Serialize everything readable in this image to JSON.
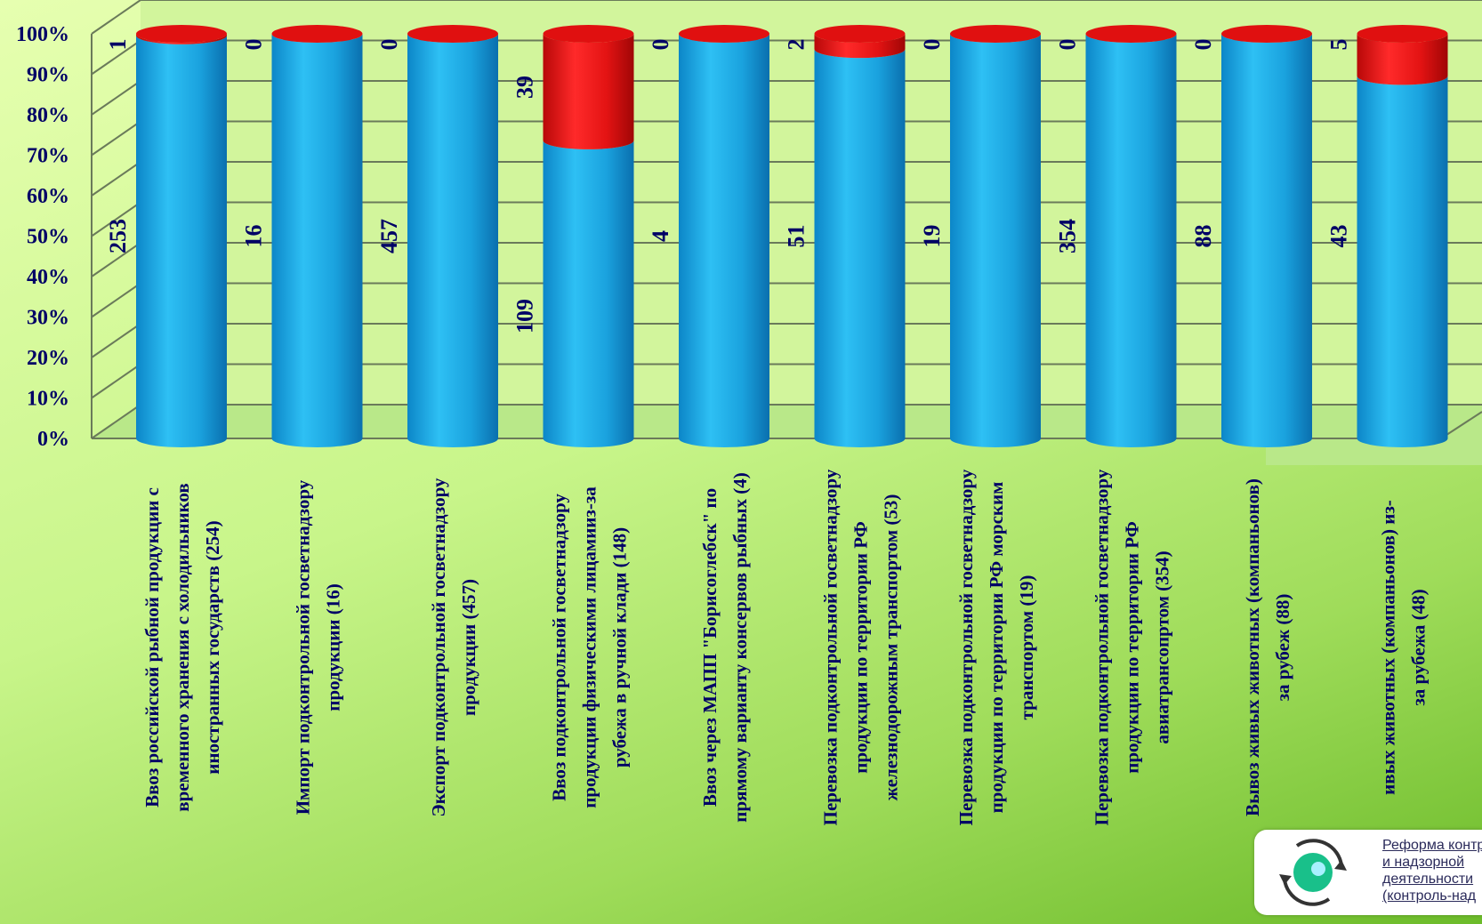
{
  "chart_data": {
    "type": "bar",
    "stacked": "percent",
    "ylim": [
      0,
      100
    ],
    "y_ticks": [
      "0%",
      "10%",
      "20%",
      "30%",
      "40%",
      "50%",
      "60%",
      "70%",
      "80%",
      "90%",
      "100%"
    ],
    "categories": [
      [
        "Ввоз российской рыбной продукции с",
        "временного хранения с холодильников",
        "иностранных государств (254)"
      ],
      [
        "Импорт подконтрольной госветнадзору",
        "продукции (16)"
      ],
      [
        "Экспорт подконтрольной госветнадзору",
        "продукции (457)"
      ],
      [
        "Ввоз подконтрольной госветнадзору",
        "продукции физическими лицамииз-за",
        "рубежа в ручной клади (148)"
      ],
      [
        "Ввоз через МАПП \"Борисоглебск\" по",
        "прямому варианту консервов рыбных (4)"
      ],
      [
        "Перевозка подконтрольной госветнадзору",
        "продукции по территории РФ",
        "железнодорожным транспортом (53)"
      ],
      [
        "Перевозка подконтрольной госветнадзору",
        "продукции по территории РФ морским",
        "транспортом (19)"
      ],
      [
        "Перевозка подконтрольной госветнадзору",
        "продукции по территории РФ",
        "авиатрансопртом (354)"
      ],
      [
        "Вывоз живых животных (компаньонов)",
        "за рубеж (88)"
      ],
      [
        "ивых животных (компаньонов) из-",
        "за рубежа (48)"
      ]
    ],
    "series": [
      {
        "color": "#19a8e0",
        "values": [
          253,
          16,
          457,
          109,
          4,
          51,
          19,
          354,
          88,
          43
        ]
      },
      {
        "color": "#e01010",
        "values": [
          1,
          0,
          0,
          39,
          0,
          2,
          0,
          0,
          0,
          5
        ]
      }
    ]
  },
  "logo": {
    "icon": "eye-cycle-icon",
    "lines": [
      "Реформа контр",
      "и надзорной",
      "деятельности",
      "(контроль-над"
    ]
  }
}
